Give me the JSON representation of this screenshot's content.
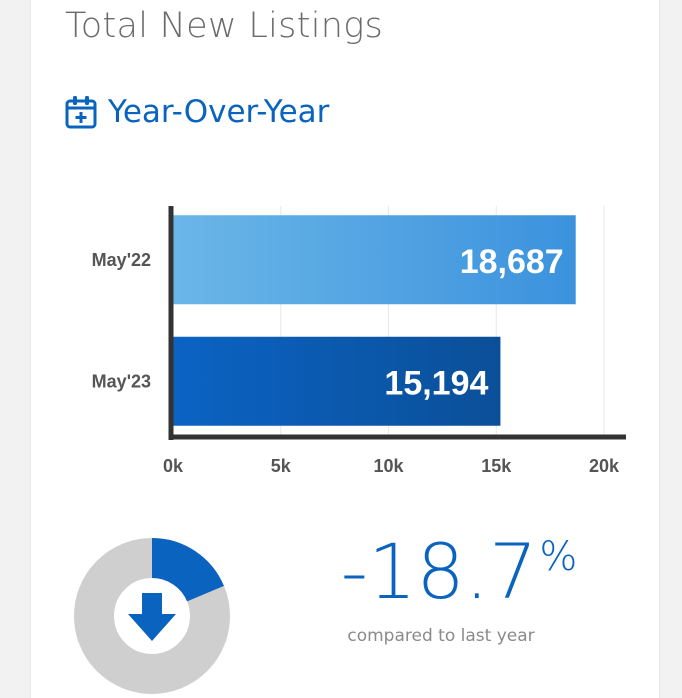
{
  "card": {
    "title": "Total New Listings",
    "subtitle": "Year-Over-Year",
    "subtitle_icon": "calendar-plus-icon"
  },
  "chart_data": {
    "type": "bar",
    "orientation": "horizontal",
    "categories": [
      "May'22",
      "May'23"
    ],
    "values": [
      18687,
      15194
    ],
    "value_labels": [
      "18,687",
      "15,194"
    ],
    "xlim": [
      0,
      20000
    ],
    "xticks": [
      0,
      5000,
      10000,
      15000,
      20000
    ],
    "xtick_labels": [
      "0k",
      "5k",
      "10k",
      "15k",
      "20k"
    ],
    "grid": true,
    "bar_colors": [
      {
        "from": "#6bb6e8",
        "to": "#3b92dd"
      },
      {
        "from": "#0b63c4",
        "to": "#0b4f98"
      }
    ]
  },
  "change": {
    "value": "-18.7",
    "unit": "%",
    "caption": "compared to last year",
    "direction_icon": "arrow-down-icon",
    "fraction": 0.187
  },
  "colors": {
    "accent": "#0a64bf",
    "donut_track": "#cfcfcf",
    "title_gray": "#6b6b6b"
  }
}
